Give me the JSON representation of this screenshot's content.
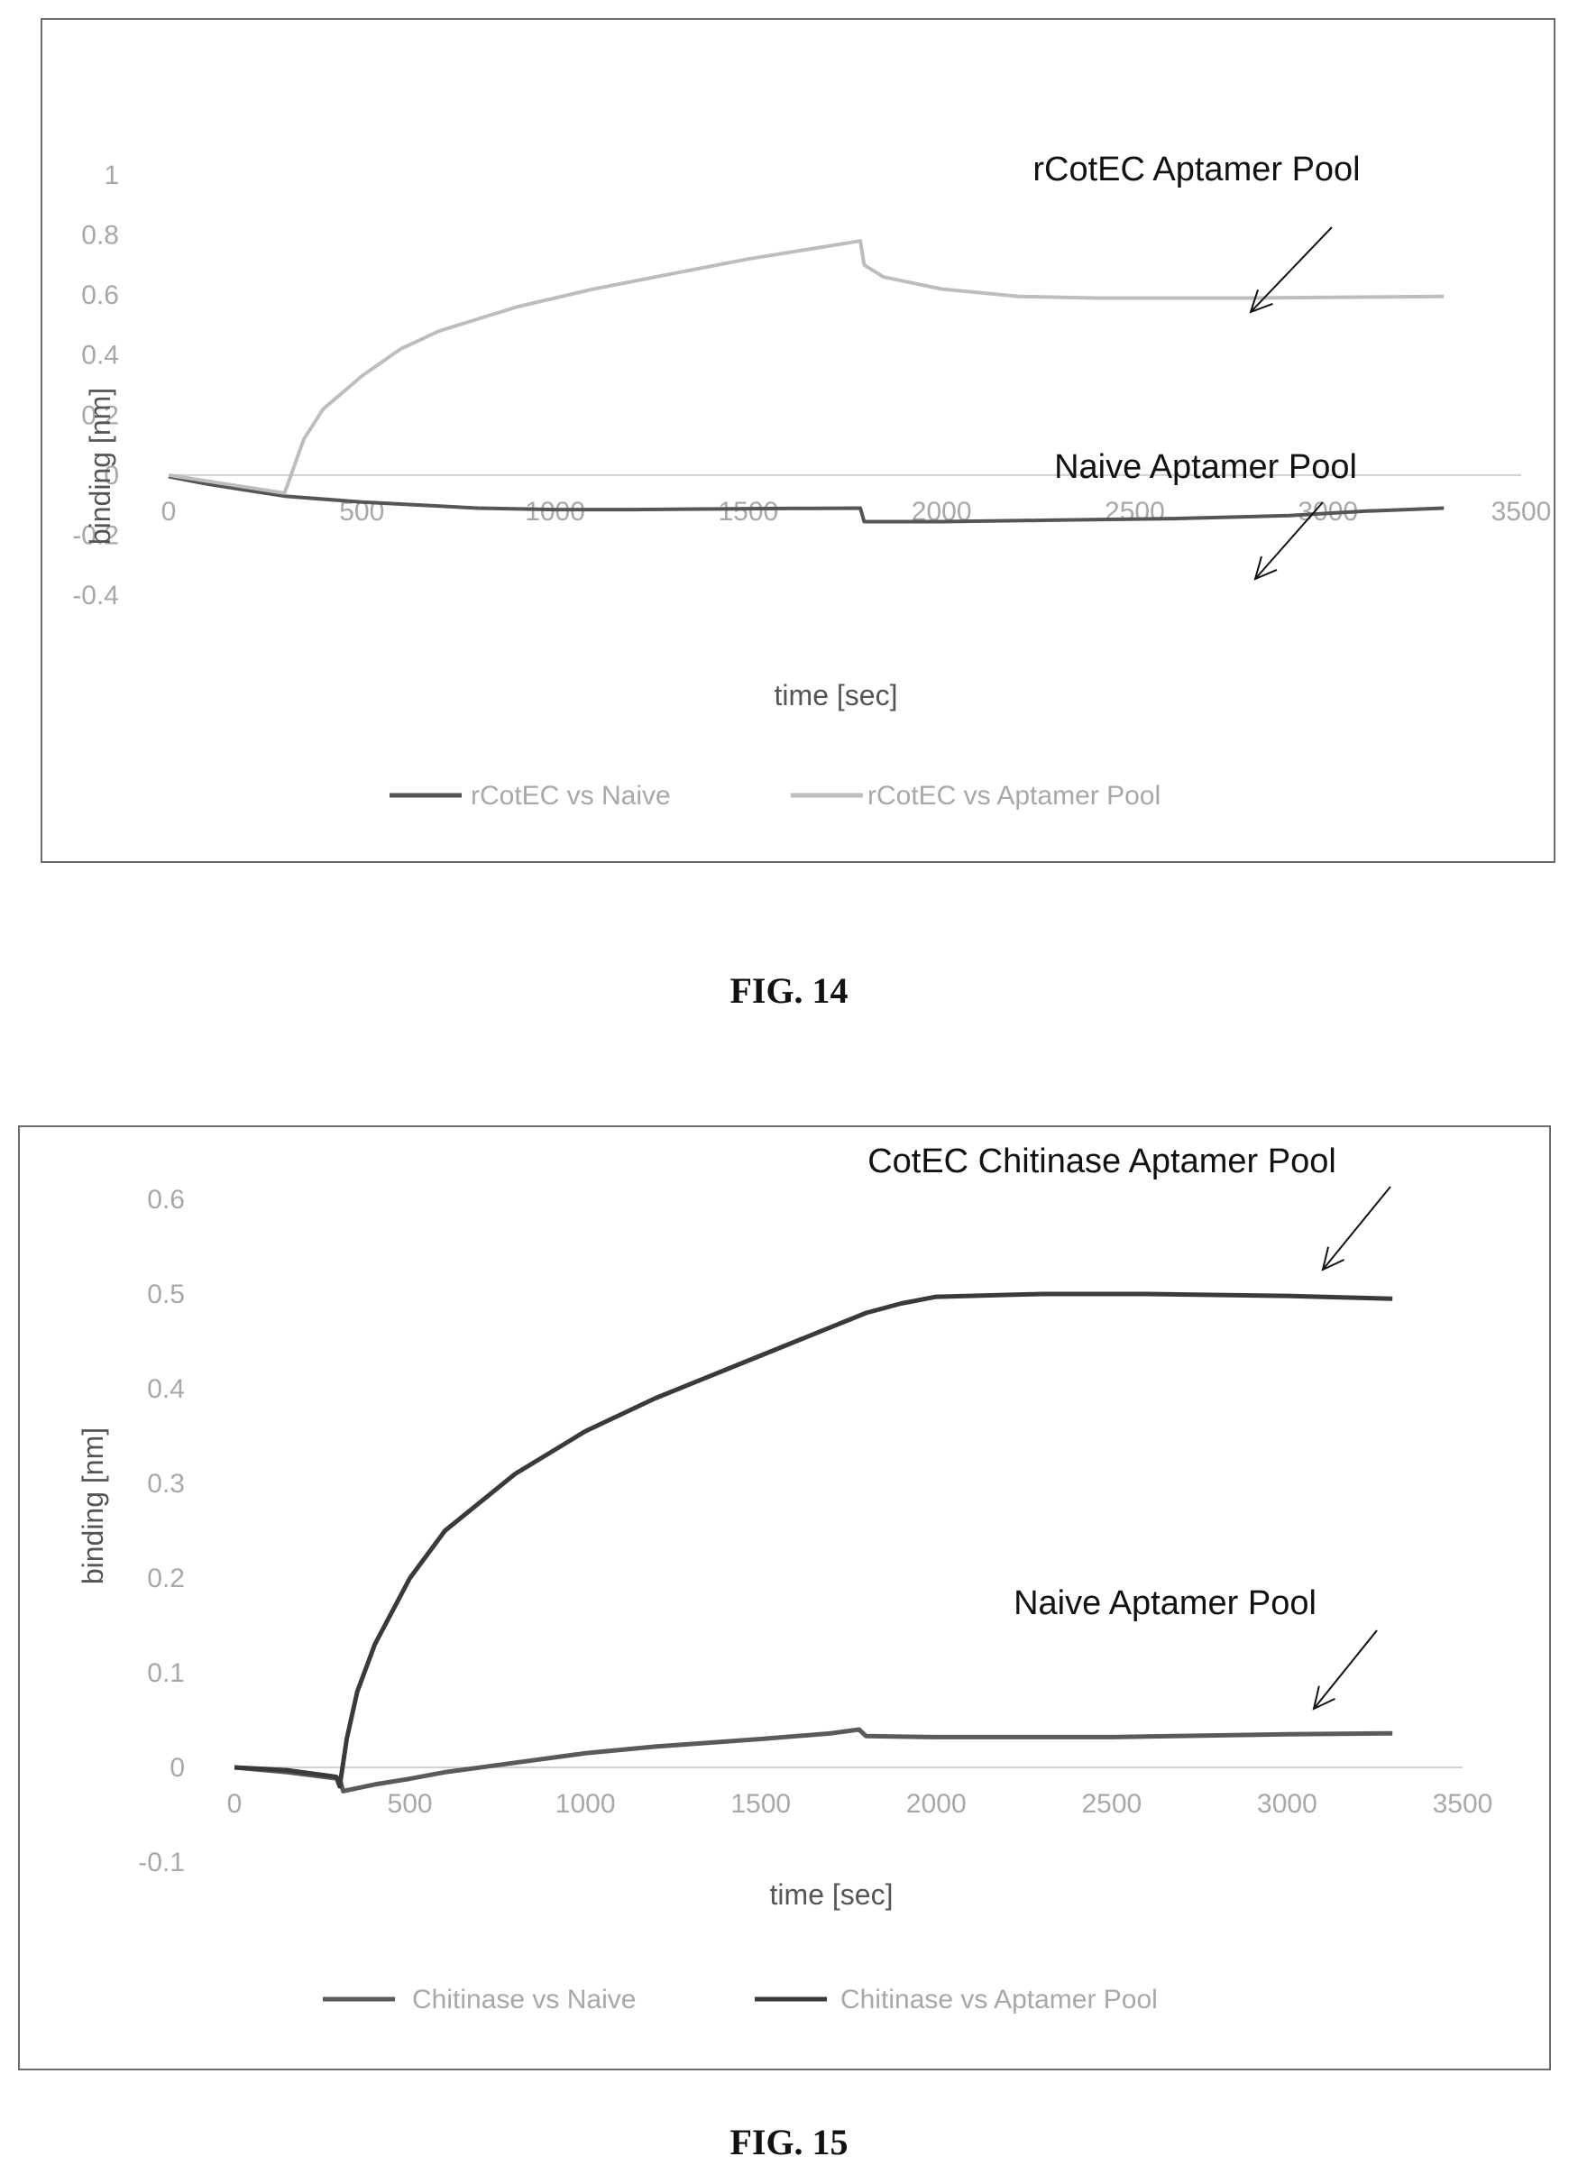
{
  "figures": {
    "fig14": {
      "caption": "FIG. 14"
    },
    "fig15": {
      "caption": "FIG. 15"
    }
  },
  "chart_data": [
    {
      "type": "line",
      "id": "fig14",
      "title": "",
      "xlabel": "time [sec]",
      "ylabel": "binding [nm]",
      "xlim": [
        0,
        3500
      ],
      "ylim": [
        -0.4,
        1
      ],
      "x_ticks": [
        "0",
        "500",
        "1000",
        "1500",
        "2000",
        "2500",
        "3000",
        "3500"
      ],
      "y_ticks": [
        "-0.4",
        "-0.2",
        "0",
        "0.2",
        "0.4",
        "0.6",
        "0.8",
        "1"
      ],
      "grid": false,
      "legend_position": "bottom",
      "annotations": [
        "rCotEC Aptamer Pool",
        "Naive Aptamer Pool"
      ],
      "series": [
        {
          "name": "rCotEC vs Naive",
          "color": "#555555",
          "x": [
            0,
            100,
            200,
            300,
            500,
            800,
            1000,
            1200,
            1500,
            1790,
            1800,
            2000,
            2300,
            2600,
            2900,
            3100,
            3300
          ],
          "y": [
            -0.005,
            -0.03,
            -0.05,
            -0.07,
            -0.09,
            -0.11,
            -0.115,
            -0.115,
            -0.112,
            -0.11,
            -0.155,
            -0.155,
            -0.15,
            -0.145,
            -0.135,
            -0.12,
            -0.11
          ]
        },
        {
          "name": "rCotEC vs Aptamer Pool",
          "color": "#bdbdbd",
          "x": [
            0,
            150,
            300,
            350,
            400,
            500,
            600,
            700,
            900,
            1100,
            1300,
            1500,
            1790,
            1800,
            1850,
            2000,
            2200,
            2400,
            2800,
            3300
          ],
          "y": [
            0,
            -0.03,
            -0.06,
            0.12,
            0.22,
            0.33,
            0.42,
            0.48,
            0.56,
            0.62,
            0.67,
            0.72,
            0.78,
            0.7,
            0.66,
            0.62,
            0.595,
            0.59,
            0.59,
            0.595
          ]
        }
      ]
    },
    {
      "type": "line",
      "id": "fig15",
      "title": "",
      "xlabel": "time [sec]",
      "ylabel": "binding [nm]",
      "xlim": [
        0,
        3500
      ],
      "ylim": [
        -0.1,
        0.6
      ],
      "x_ticks": [
        "0",
        "500",
        "1000",
        "1500",
        "2000",
        "2500",
        "3000",
        "3500"
      ],
      "y_ticks": [
        "-0.1",
        "0",
        "0.1",
        "0.2",
        "0.3",
        "0.4",
        "0.5",
        "0.6"
      ],
      "grid": false,
      "legend_position": "bottom",
      "annotations": [
        "CotEC Chitinase Aptamer Pool",
        "Naive Aptamer Pool"
      ],
      "series": [
        {
          "name": "Chitinase vs Naive",
          "color": "#5a5a5a",
          "x": [
            0,
            150,
            300,
            310,
            400,
            500,
            600,
            800,
            1000,
            1200,
            1500,
            1700,
            1780,
            1800,
            2000,
            2500,
            3000,
            3300
          ],
          "y": [
            0,
            -0.005,
            -0.012,
            -0.025,
            -0.018,
            -0.012,
            -0.005,
            0.005,
            0.015,
            0.022,
            0.03,
            0.036,
            0.04,
            0.033,
            0.032,
            0.032,
            0.035,
            0.036
          ]
        },
        {
          "name": "Chitinase vs Aptamer Pool",
          "color": "#3a3a3a",
          "x": [
            0,
            150,
            290,
            300,
            320,
            350,
            400,
            500,
            600,
            800,
            1000,
            1200,
            1400,
            1600,
            1800,
            1900,
            2000,
            2300,
            2600,
            3000,
            3300
          ],
          "y": [
            0,
            -0.003,
            -0.01,
            -0.02,
            0.03,
            0.08,
            0.13,
            0.2,
            0.25,
            0.31,
            0.355,
            0.39,
            0.42,
            0.45,
            0.48,
            0.49,
            0.497,
            0.5,
            0.5,
            0.498,
            0.495
          ]
        }
      ]
    }
  ]
}
